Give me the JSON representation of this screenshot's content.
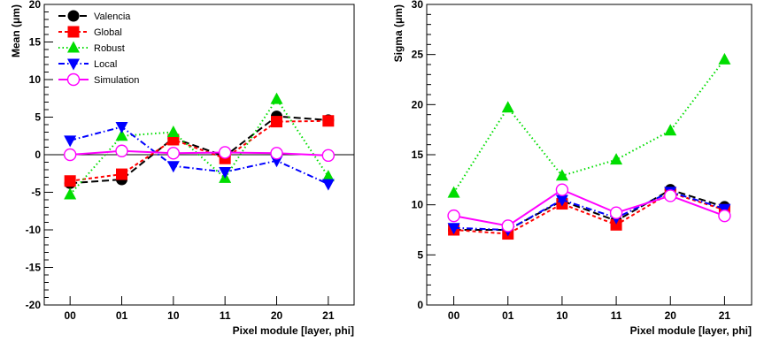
{
  "chart_data": [
    {
      "type": "line",
      "xlabel": "Pixel module [layer, phi]",
      "ylabel": "Mean (μm)",
      "categories": [
        "00",
        "01",
        "10",
        "11",
        "20",
        "21"
      ],
      "ylim": [
        -20,
        20
      ],
      "yticks": [
        -20,
        -15,
        -10,
        -5,
        0,
        5,
        10,
        15,
        20
      ],
      "zero_line": true,
      "legend_position": "top-left",
      "series": [
        {
          "name": "Valencia",
          "color": "#000000",
          "marker": "circle",
          "dash": "8,4",
          "values": [
            -3.8,
            -3.3,
            2.2,
            -0.2,
            5.1,
            4.6
          ]
        },
        {
          "name": "Global",
          "color": "#ff0000",
          "marker": "square",
          "dash": "4,3",
          "values": [
            -3.5,
            -2.6,
            2.0,
            -0.5,
            4.4,
            4.5
          ]
        },
        {
          "name": "Robust",
          "color": "#00dd00",
          "marker": "triangle-up",
          "dash": "1.5,3",
          "values": [
            -5.3,
            2.5,
            3.0,
            -3.1,
            7.4,
            -2.9
          ]
        },
        {
          "name": "Local",
          "color": "#0000ff",
          "marker": "triangle-down",
          "dash": "7,3,1.5,3",
          "values": [
            1.9,
            3.7,
            -1.5,
            -2.3,
            -0.8,
            -3.9
          ]
        },
        {
          "name": "Simulation",
          "color": "#ff00ff",
          "marker": "open-circle",
          "dash": "",
          "values": [
            0.0,
            0.5,
            0.2,
            0.3,
            0.2,
            -0.1
          ]
        }
      ]
    },
    {
      "type": "line",
      "xlabel": "Pixel module [layer, phi]",
      "ylabel": "Sigma (μm)",
      "categories": [
        "00",
        "01",
        "10",
        "11",
        "20",
        "21"
      ],
      "ylim": [
        0,
        30
      ],
      "yticks": [
        0,
        5,
        10,
        15,
        20,
        25,
        30
      ],
      "zero_line": false,
      "series": [
        {
          "name": "Valencia",
          "color": "#000000",
          "marker": "circle",
          "dash": "8,4",
          "values": [
            7.5,
            7.5,
            10.4,
            8.4,
            11.5,
            9.8
          ]
        },
        {
          "name": "Global",
          "color": "#ff0000",
          "marker": "square",
          "dash": "4,3",
          "values": [
            7.5,
            7.1,
            10.1,
            8.0,
            11.2,
            9.5
          ]
        },
        {
          "name": "Robust",
          "color": "#00dd00",
          "marker": "triangle-up",
          "dash": "1.5,3",
          "values": [
            11.2,
            19.7,
            12.9,
            14.5,
            17.4,
            24.5
          ]
        },
        {
          "name": "Local",
          "color": "#0000ff",
          "marker": "triangle-down",
          "dash": "7,3,1.5,3",
          "values": [
            7.7,
            7.5,
            10.5,
            8.7,
            11.3,
            9.6
          ]
        },
        {
          "name": "Simulation",
          "color": "#ff00ff",
          "marker": "open-circle",
          "dash": "",
          "values": [
            8.9,
            7.9,
            11.5,
            9.2,
            10.9,
            8.9
          ]
        }
      ]
    }
  ]
}
